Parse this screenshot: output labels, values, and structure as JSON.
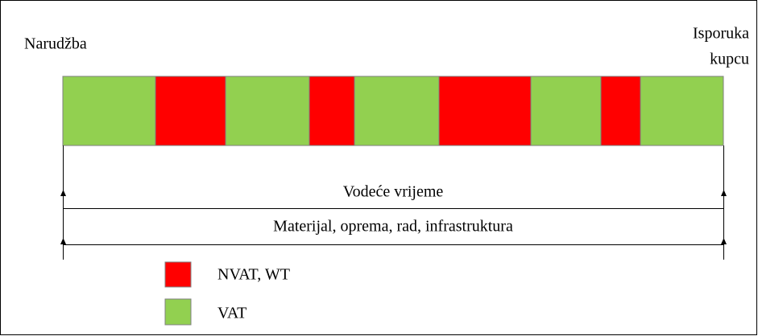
{
  "start_label": "Narudžba",
  "end_label": [
    "Isporuka",
    "kupcu"
  ],
  "spans": [
    "Vodeće vrijeme",
    "Materijal, oprema, rad, infrastruktura"
  ],
  "legend": [
    {
      "label": "NVAT, WT"
    },
    {
      "label": "VAT"
    }
  ]
}
